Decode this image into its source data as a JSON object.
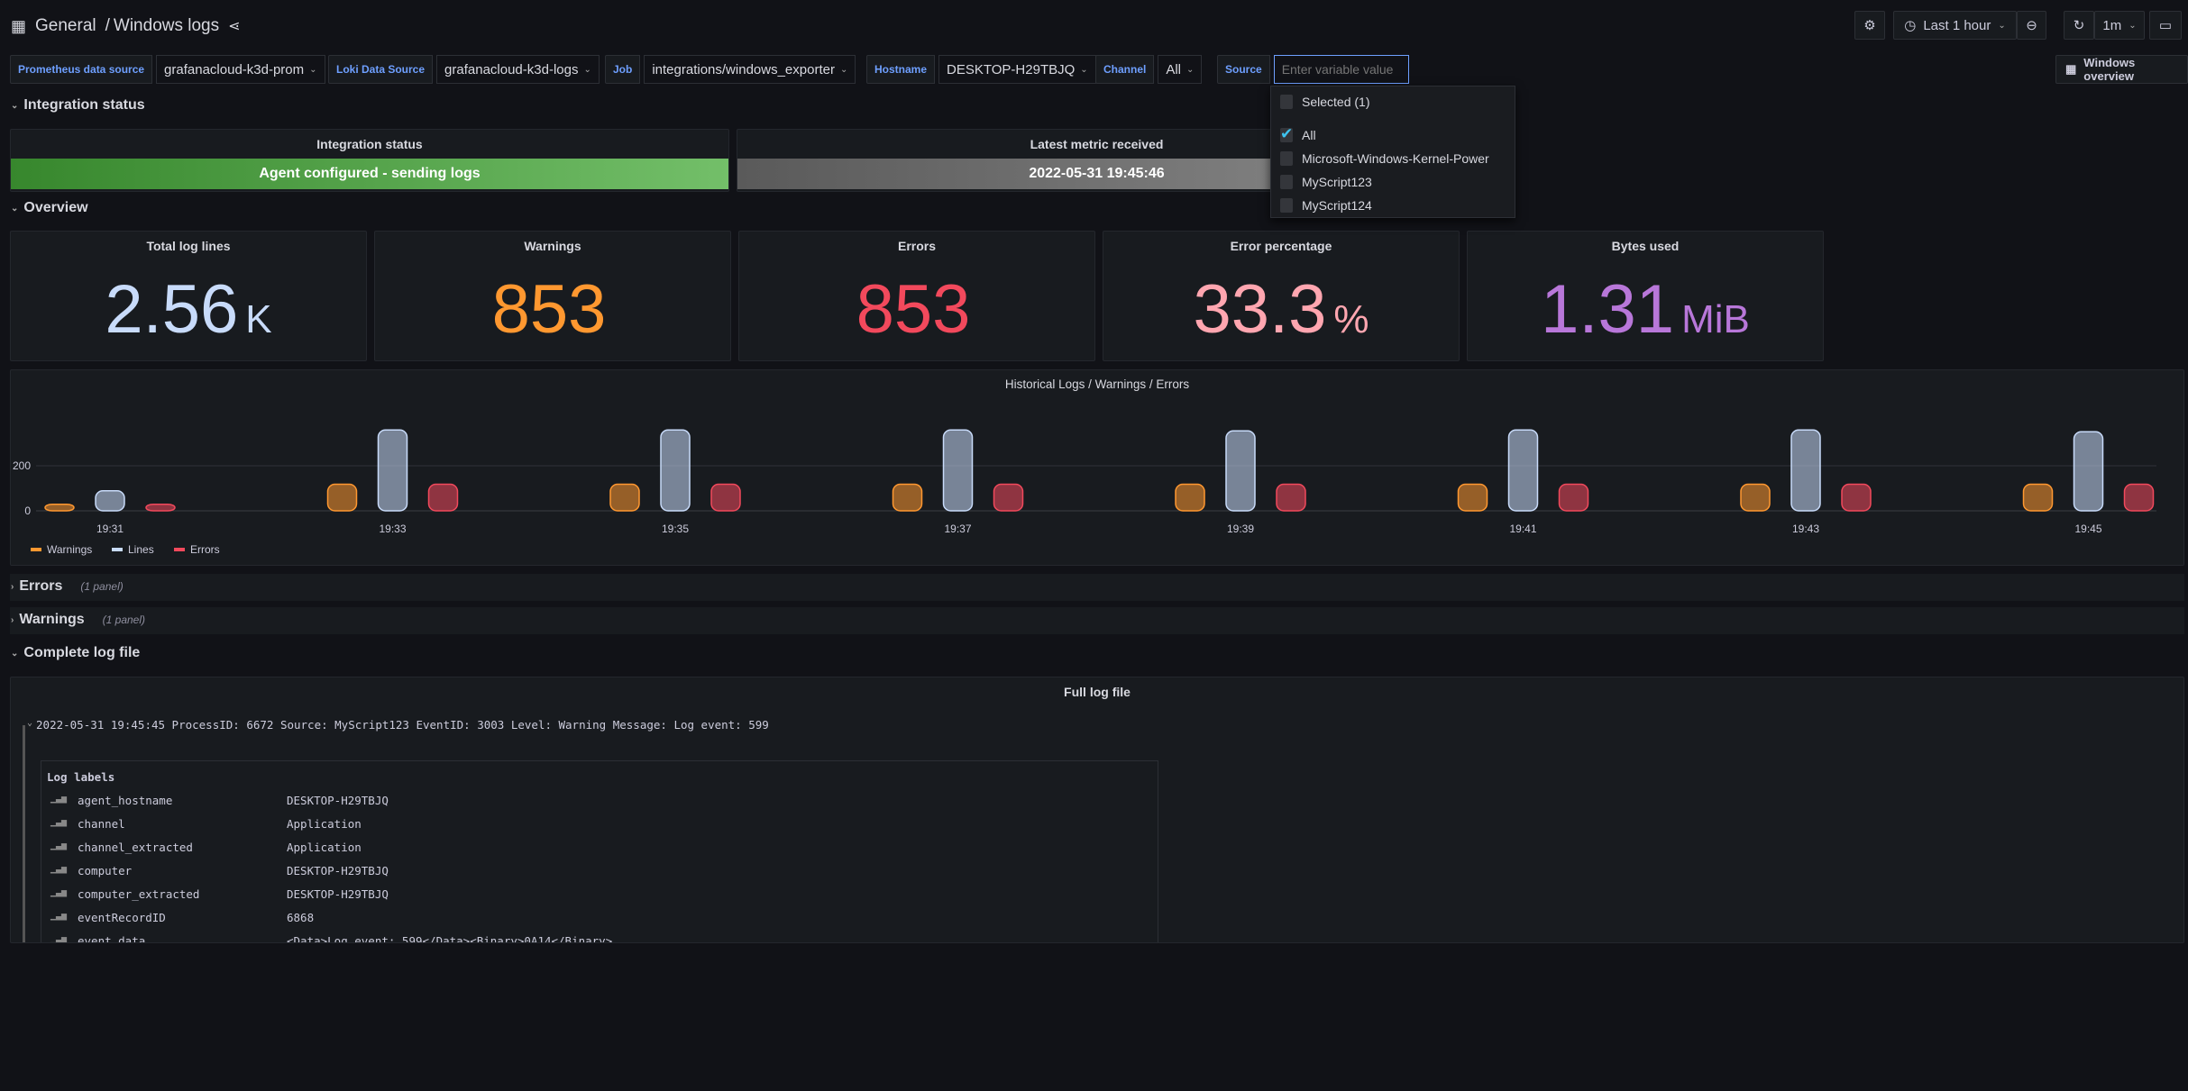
{
  "header": {
    "folder": "General",
    "separator": "/",
    "title": "Windows logs",
    "time_range": "Last 1 hour",
    "refresh": "1m"
  },
  "variables": [
    {
      "label": "Prometheus data source",
      "value": "grafanacloud-k3d-prom"
    },
    {
      "label": "Loki Data Source",
      "value": "grafanacloud-k3d-logs"
    },
    {
      "label": "Job",
      "value": "integrations/windows_exporter"
    },
    {
      "label": "Hostname",
      "value": "DESKTOP-H29TBJQ"
    },
    {
      "label": "Channel",
      "value": "All"
    },
    {
      "label": "Source",
      "placeholder": "Enter variable value"
    }
  ],
  "link_button": "Windows overview",
  "source_dropdown": {
    "selected_label": "Selected (1)",
    "options": [
      {
        "label": "All",
        "checked": true
      },
      {
        "label": "Microsoft-Windows-Kernel-Power",
        "checked": false
      },
      {
        "label": "MyScript123",
        "checked": false
      },
      {
        "label": "MyScript124",
        "checked": false
      }
    ]
  },
  "rows": {
    "integration": "Integration status",
    "overview": "Overview",
    "errors": "Errors",
    "errors_sub": "(1 panel)",
    "warnings": "Warnings",
    "warnings_sub": "(1 panel)",
    "complete": "Complete log file"
  },
  "integration": {
    "status_title": "Integration status",
    "status_value": "Agent configured - sending logs",
    "latest_title": "Latest metric received",
    "latest_value": "2022-05-31 19:45:46",
    "colors": {
      "ok": "#56a64b",
      "grey": "#6e6e6e"
    }
  },
  "stats": [
    {
      "title": "Total log lines",
      "value": "2.56",
      "unit": "K",
      "color": "#c8dbfa"
    },
    {
      "title": "Warnings",
      "value": "853",
      "unit": "",
      "color": "#ff9830"
    },
    {
      "title": "Errors",
      "value": "853",
      "unit": "",
      "color": "#f2495c"
    },
    {
      "title": "Error percentage",
      "value": "33.3",
      "unit": "%",
      "color": "#ffa6b0"
    },
    {
      "title": "Bytes used",
      "value": "1.31",
      "unit": "MiB",
      "color": "#b877d9"
    }
  ],
  "chart_data": {
    "type": "bar",
    "title": "Historical Logs / Warnings / Errors",
    "categories": [
      "19:31",
      "19:33",
      "19:35",
      "19:37",
      "19:39",
      "19:41",
      "19:43",
      "19:45"
    ],
    "yticks": [
      "0",
      "200"
    ],
    "ylim": [
      0,
      380
    ],
    "grid": true,
    "legend": "bottom-left",
    "series": [
      {
        "name": "Warnings",
        "color": "#ff9830",
        "values": [
          29,
          118,
          118,
          118,
          118,
          118,
          118,
          118
        ]
      },
      {
        "name": "Lines",
        "color": "#c8dbfa",
        "values": [
          89,
          359,
          359,
          359,
          355,
          359,
          359,
          351
        ]
      },
      {
        "name": "Errors",
        "color": "#f2495c",
        "values": [
          29,
          118,
          118,
          118,
          118,
          118,
          118,
          118
        ]
      }
    ]
  },
  "logs": {
    "title": "Full log file",
    "line": "2022-05-31 19:45:45 ProcessID: 6672 Source: MyScript123 EventID: 3003 Level: Warning  Message: Log event: 599",
    "labels_title": "Log labels",
    "labels": [
      {
        "key": "agent_hostname",
        "value": "DESKTOP-H29TBJQ"
      },
      {
        "key": "channel",
        "value": "Application"
      },
      {
        "key": "channel_extracted",
        "value": "Application"
      },
      {
        "key": "computer",
        "value": "DESKTOP-H29TBJQ"
      },
      {
        "key": "computer_extracted",
        "value": "DESKTOP-H29TBJQ"
      },
      {
        "key": "eventRecordID",
        "value": "6868"
      },
      {
        "key": "event_data",
        "value": "<Data>Log event: 599</Data><Binary>0A14</Binary>"
      }
    ]
  }
}
